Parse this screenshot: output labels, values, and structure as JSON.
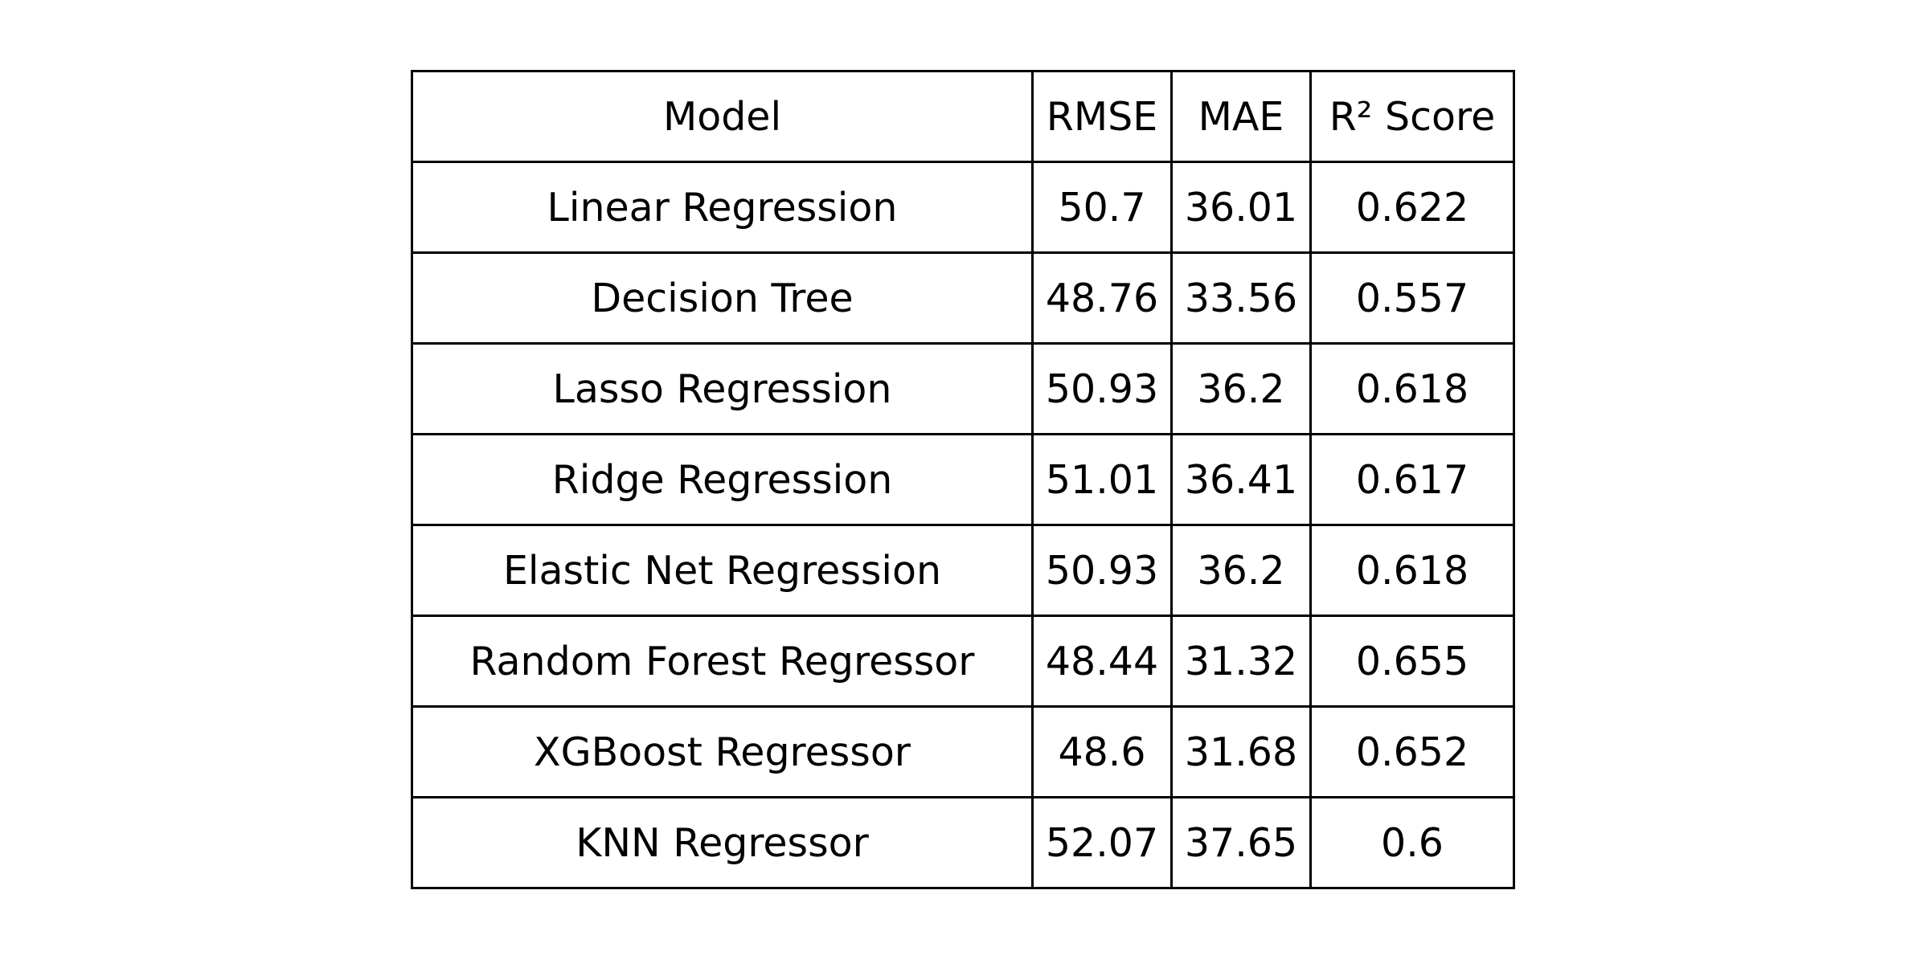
{
  "chart_data": {
    "type": "table",
    "columns": [
      "Model",
      "RMSE",
      "MAE",
      "R² Score"
    ],
    "rows": [
      [
        "Linear Regression",
        "50.7",
        "36.01",
        "0.622"
      ],
      [
        "Decision Tree",
        "48.76",
        "33.56",
        "0.557"
      ],
      [
        "Lasso Regression",
        "50.93",
        "36.2",
        "0.618"
      ],
      [
        "Ridge Regression",
        "51.01",
        "36.41",
        "0.617"
      ],
      [
        "Elastic Net Regression",
        "50.93",
        "36.2",
        "0.618"
      ],
      [
        "Random Forest Regressor",
        "48.44",
        "31.32",
        "0.655"
      ],
      [
        "XGBoost Regressor",
        "48.6",
        "31.68",
        "0.652"
      ],
      [
        "KNN Regressor",
        "52.07",
        "37.65",
        "0.6"
      ]
    ]
  }
}
